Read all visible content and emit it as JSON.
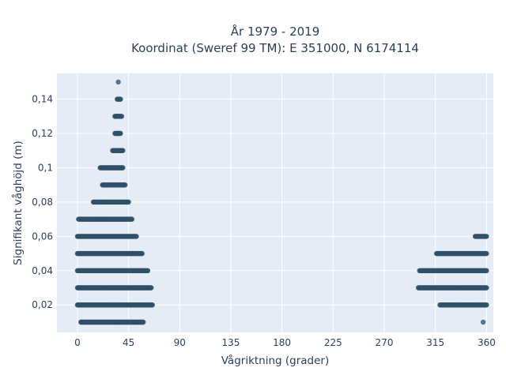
{
  "chart_data": {
    "type": "scatter",
    "title_line1": "År 1979 - 2019",
    "title_line2": "Koordinat (Sweref 99 TM): E 351000, N 6174114",
    "xlabel": "Vågriktning (grader)",
    "ylabel": "Signifikant våghöjd (m)",
    "xlim": [
      -18,
      366
    ],
    "ylim": [
      0.004,
      0.155
    ],
    "xticks": [
      0,
      45,
      90,
      135,
      180,
      225,
      270,
      315,
      360
    ],
    "xtick_labels": [
      "0",
      "45",
      "90",
      "135",
      "180",
      "225",
      "270",
      "315",
      "360"
    ],
    "yticks": [
      0.02,
      0.04,
      0.06,
      0.08,
      0.1,
      0.12,
      0.14
    ],
    "ytick_labels": [
      "0,02",
      "0,04",
      "0,06",
      "0,08",
      "0,1",
      "0,12",
      "0,14"
    ],
    "grid": true,
    "marker_color": "#2f5168",
    "plot_bg": "#e5ecf6",
    "bands": [
      {
        "y": 0.01,
        "x_min": 3,
        "x_max": 58
      },
      {
        "y": 0.01,
        "x_min": 357,
        "x_max": 357
      },
      {
        "y": 0.02,
        "x_min": 0,
        "x_max": 66
      },
      {
        "y": 0.02,
        "x_min": 319,
        "x_max": 360
      },
      {
        "y": 0.03,
        "x_min": 0,
        "x_max": 65
      },
      {
        "y": 0.03,
        "x_min": 300,
        "x_max": 360
      },
      {
        "y": 0.04,
        "x_min": 0,
        "x_max": 62
      },
      {
        "y": 0.04,
        "x_min": 301,
        "x_max": 360
      },
      {
        "y": 0.05,
        "x_min": 0,
        "x_max": 57
      },
      {
        "y": 0.05,
        "x_min": 316,
        "x_max": 360
      },
      {
        "y": 0.06,
        "x_min": 0,
        "x_max": 52
      },
      {
        "y": 0.06,
        "x_min": 350,
        "x_max": 360
      },
      {
        "y": 0.07,
        "x_min": 1,
        "x_max": 48
      },
      {
        "y": 0.08,
        "x_min": 14,
        "x_max": 45
      },
      {
        "y": 0.09,
        "x_min": 22,
        "x_max": 42
      },
      {
        "y": 0.1,
        "x_min": 20,
        "x_max": 40
      },
      {
        "y": 0.11,
        "x_min": 31,
        "x_max": 40
      },
      {
        "y": 0.12,
        "x_min": 33,
        "x_max": 38
      },
      {
        "y": 0.13,
        "x_min": 33,
        "x_max": 39
      },
      {
        "y": 0.14,
        "x_min": 35,
        "x_max": 38
      },
      {
        "y": 0.15,
        "x_min": 36,
        "x_max": 36
      }
    ]
  }
}
